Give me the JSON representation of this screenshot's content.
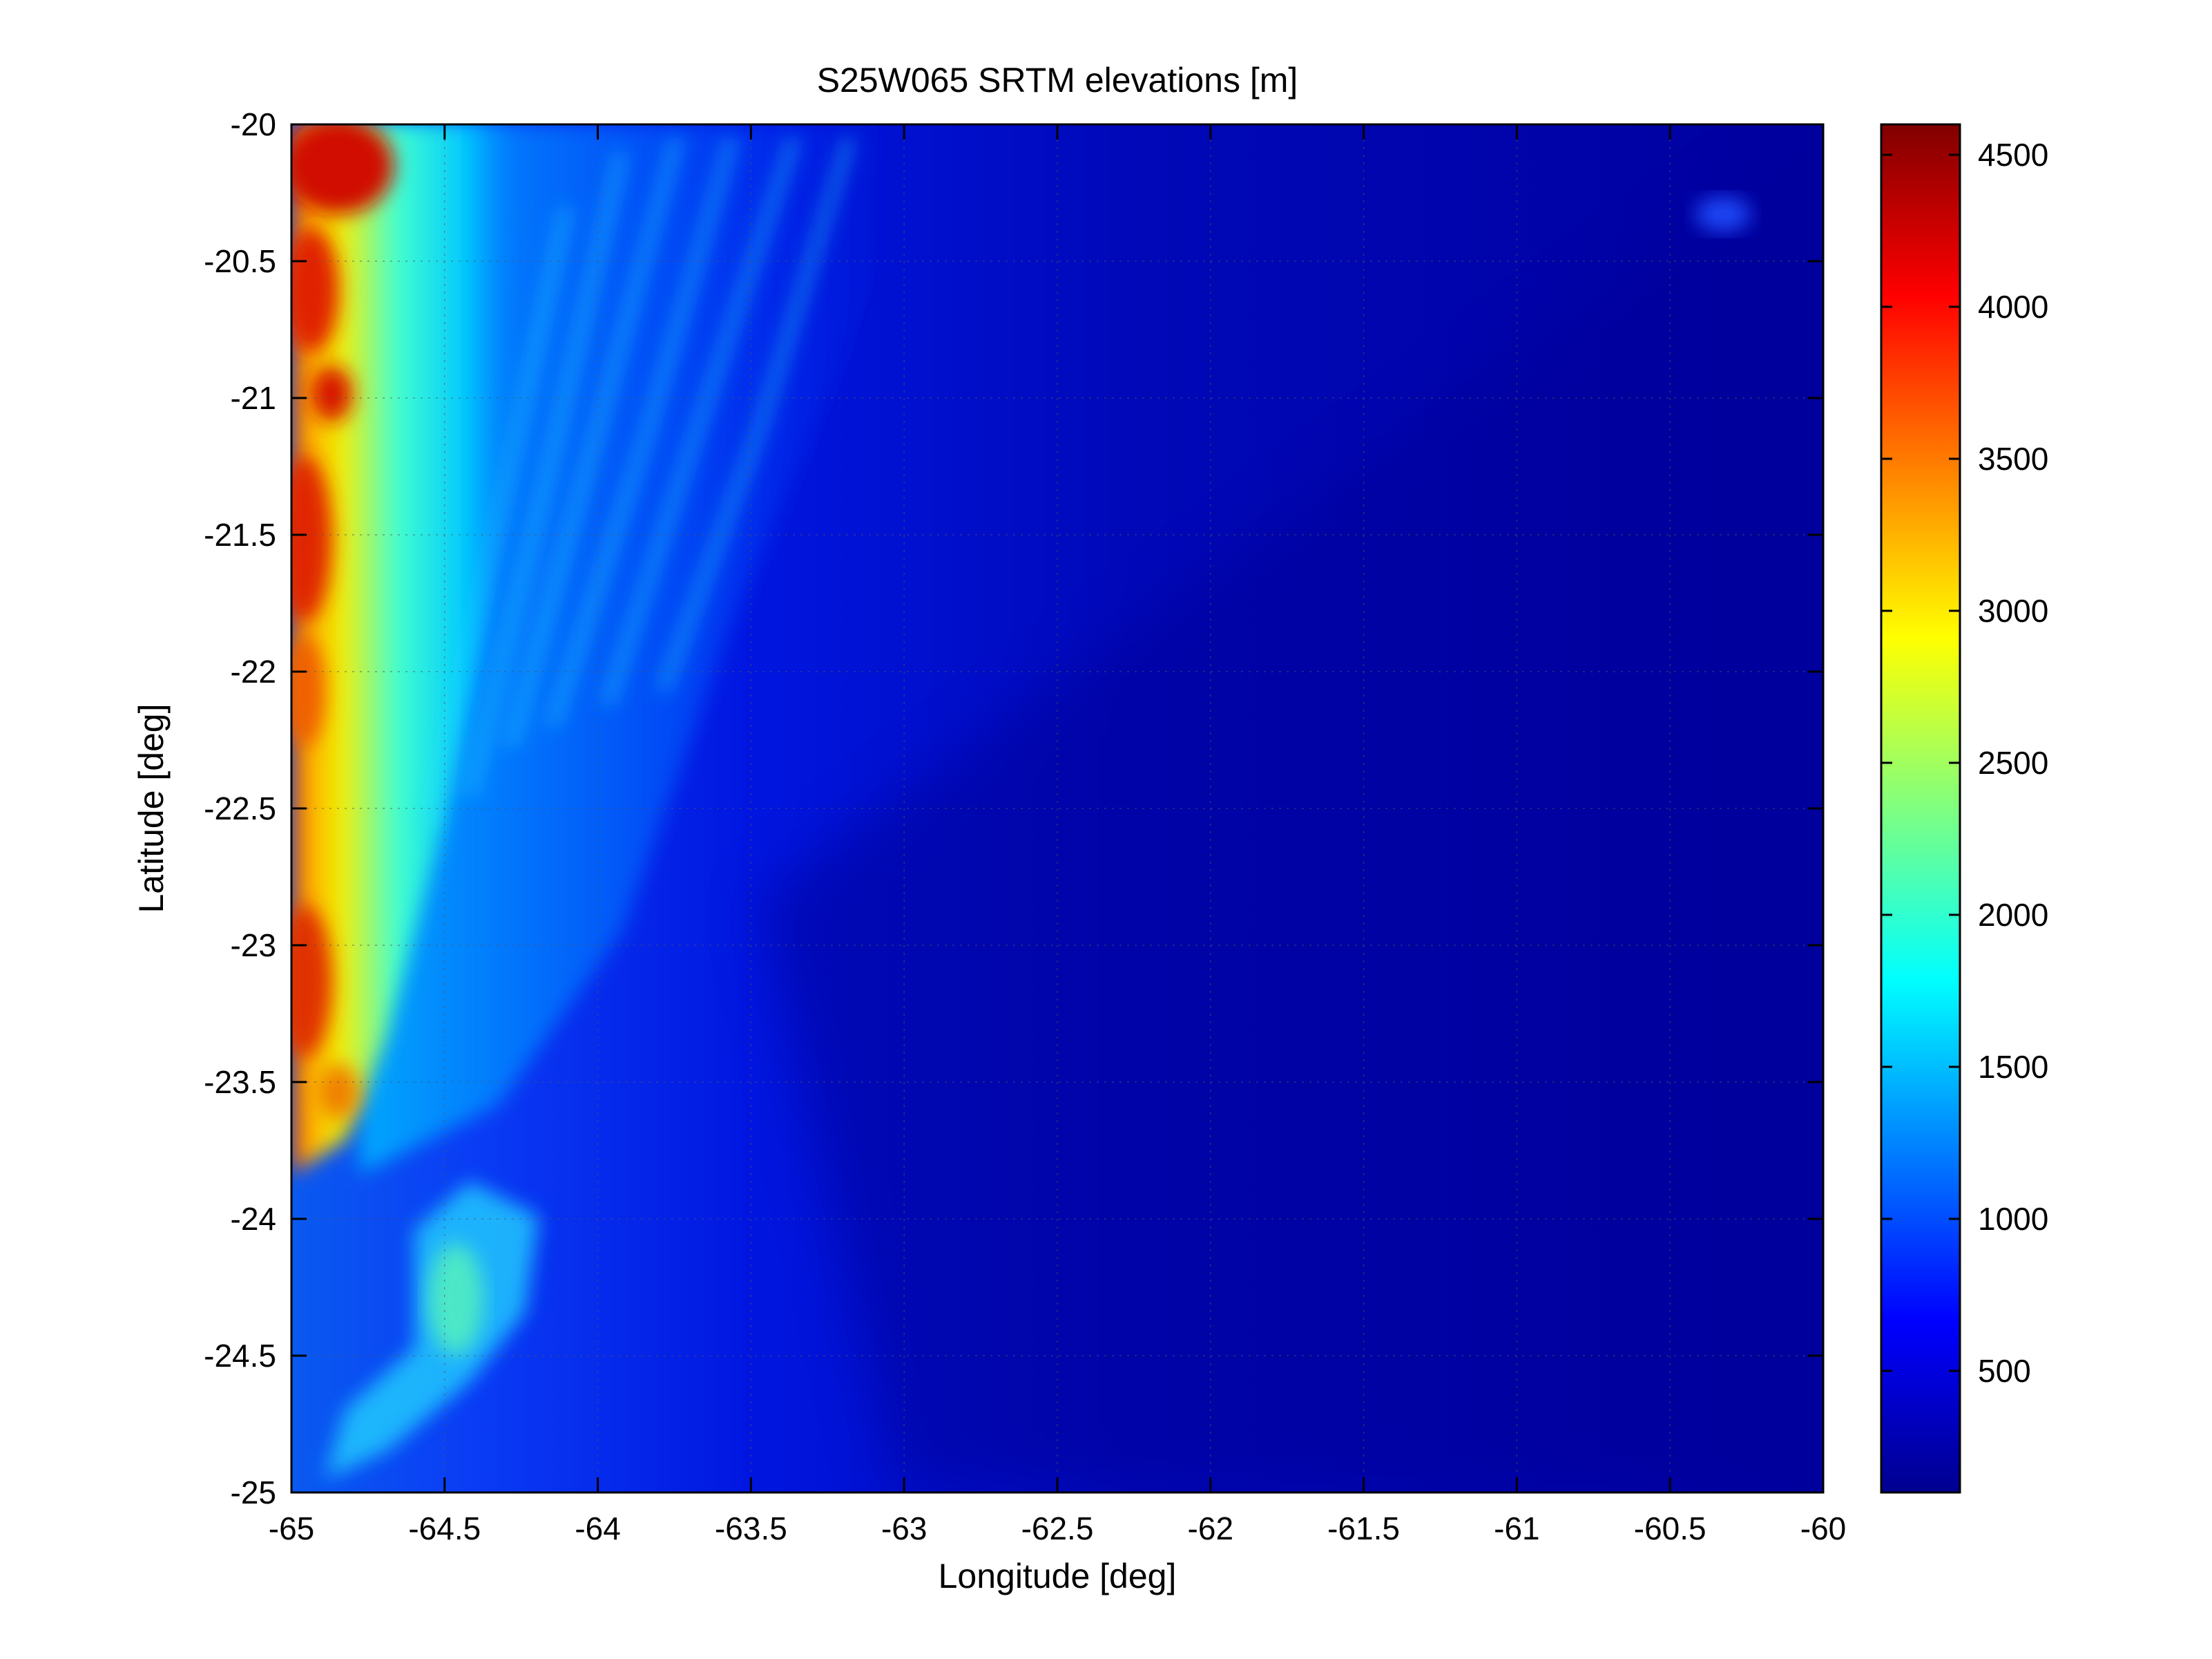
{
  "chart_data": {
    "type": "heatmap",
    "title": "S25W065 SRTM elevations [m]",
    "xlabel": "Longitude [deg]",
    "ylabel": "Latitude [deg]",
    "xlim": [
      -65,
      -60
    ],
    "ylim": [
      -25,
      -20
    ],
    "xticks": [
      "-65",
      "-64.5",
      "-64",
      "-63.5",
      "-63",
      "-62.5",
      "-62",
      "-61.5",
      "-61",
      "-60.5",
      "-60"
    ],
    "yticks": [
      "-20",
      "-20.5",
      "-21",
      "-21.5",
      "-22",
      "-22.5",
      "-23",
      "-23.5",
      "-24",
      "-24.5",
      "-25"
    ],
    "grid": true,
    "colormap": "jet",
    "colorbar": {
      "range": [
        100,
        4600
      ],
      "ticks": [
        "500",
        "1000",
        "1500",
        "2000",
        "2500",
        "3000",
        "3500",
        "4000",
        "4500"
      ],
      "placement": "right"
    },
    "description_colors": {
      "high_west": "#c80000",
      "mid": "#00d8ff",
      "low_east": "#00008f"
    }
  }
}
